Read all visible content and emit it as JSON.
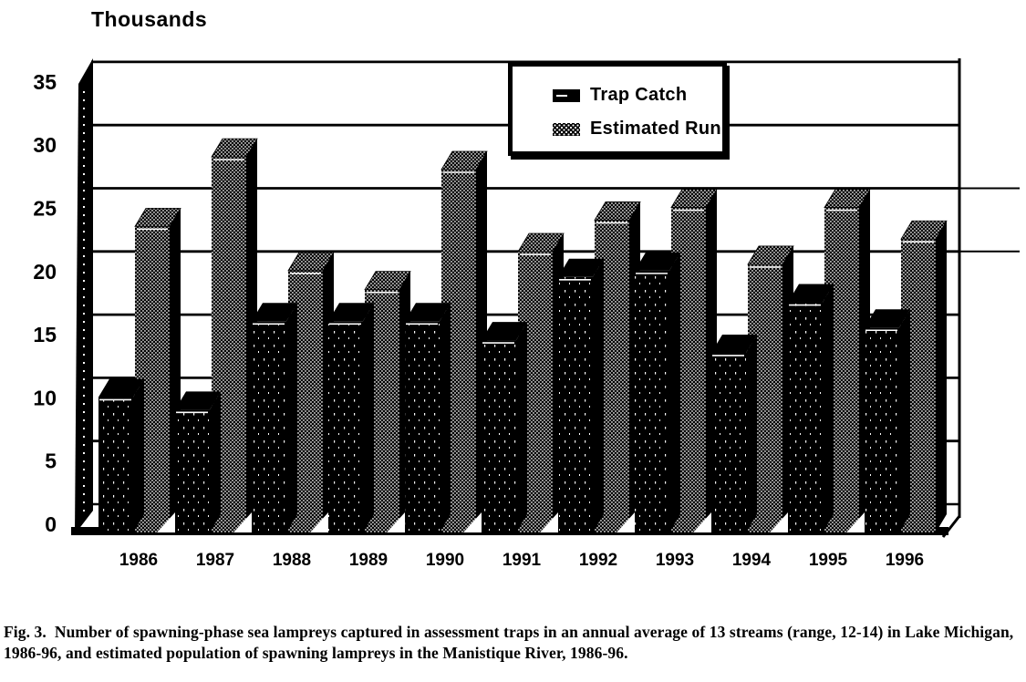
{
  "figure": {
    "caption": "Fig. 3.  Number of spawning-phase sea lampreys captured in assessment traps in an annual average of 13 streams (range, 12-14) in Lake Michigan, 1986-96, and estimated population of spawning lampreys in the Manistique River, 1986-96."
  },
  "chart_data": {
    "type": "bar",
    "style": "3d-column-scanned-monochrome",
    "title": "Thousands",
    "categories": [
      "1986",
      "1987",
      "1988",
      "1989",
      "1990",
      "1991",
      "1992",
      "1993",
      "1994",
      "1995",
      "1996"
    ],
    "series": [
      {
        "name": "Trap Catch",
        "pattern": "solid-black",
        "values": [
          10.5,
          9.5,
          16.5,
          16.5,
          16.5,
          15,
          20,
          20.5,
          14,
          18,
          16
        ]
      },
      {
        "name": "Estimated Run",
        "pattern": "stippled",
        "values": [
          24,
          29.5,
          20.5,
          19,
          28.5,
          22,
          24.5,
          25.5,
          21,
          25.5,
          23
        ]
      }
    ],
    "xlabel": "",
    "ylabel": "Thousands",
    "ylim": [
      0,
      35
    ],
    "ytick_step": 5,
    "grid": true,
    "legend_position": "top-center-inside",
    "colors": {
      "foreground": "#000000",
      "background": "#ffffff"
    }
  }
}
